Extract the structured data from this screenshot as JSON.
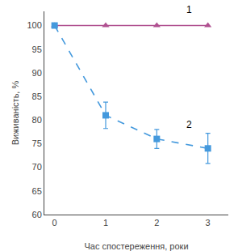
{
  "chart_data": {
    "type": "line",
    "xlabel": "Час спостереження, роки",
    "ylabel": "Виживаність, %",
    "x": [
      0,
      1,
      2,
      3
    ],
    "series": [
      {
        "values": [
          100,
          100,
          100,
          100
        ],
        "color": "#b05090",
        "marker": "triangle",
        "line_style": "solid"
      },
      {
        "values": [
          100,
          81,
          76,
          74
        ],
        "yerr": [
          0,
          2.8,
          2.0,
          3.2
        ],
        "color": "#4499dd",
        "marker": "square",
        "line_style": "dashed"
      }
    ],
    "xlim": [
      -0.2,
      3.4
    ],
    "xticks": [
      0,
      1,
      2,
      3
    ],
    "ylim": [
      60,
      103
    ],
    "yticks": [
      60,
      65,
      70,
      75,
      80,
      85,
      90,
      95,
      100
    ],
    "grid": false,
    "annotations": [
      {
        "text": "1",
        "x": 2.55,
        "y": 101.8
      },
      {
        "text": "2",
        "x": 2.55,
        "y": 77.5
      }
    ]
  }
}
